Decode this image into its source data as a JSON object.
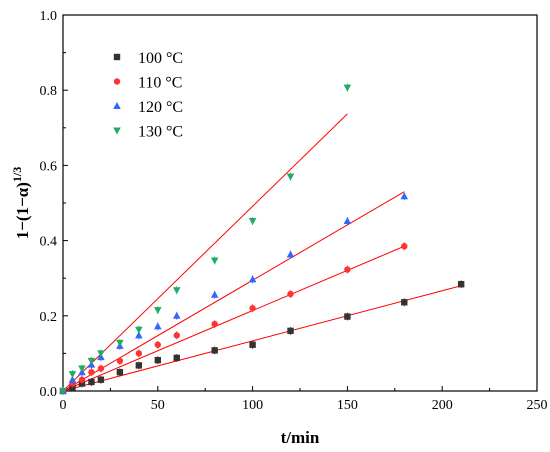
{
  "chart_data": {
    "type": "scatter",
    "xlabel": "t/min",
    "ylabel": {
      "base": "1−(1−α)",
      "exponent": "1/3"
    },
    "xlim": [
      0,
      250
    ],
    "ylim": [
      0.0,
      1.0
    ],
    "x_ticks": [
      "0",
      "50",
      "100",
      "150",
      "200",
      "250"
    ],
    "y_ticks": [
      "0.0",
      "0.2",
      "0.4",
      "0.6",
      "0.8",
      "1.0"
    ],
    "grid": false,
    "legend_position": "top-left",
    "fit_line_color": "#ff0000",
    "series": [
      {
        "name": "100 °C",
        "marker": "square",
        "color": "#333333",
        "x": [
          0,
          5,
          10,
          15,
          20,
          30,
          40,
          50,
          60,
          80,
          100,
          120,
          150,
          180,
          210
        ],
        "y": [
          0.0,
          0.01,
          0.02,
          0.024,
          0.03,
          0.05,
          0.068,
          0.082,
          0.088,
          0.108,
          0.123,
          0.16,
          0.198,
          0.236,
          0.284
        ],
        "fit": {
          "x": [
            0,
            210
          ],
          "y": [
            0.0,
            0.28
          ]
        }
      },
      {
        "name": "110 °C",
        "marker": "circle",
        "color": "#ff3333",
        "x": [
          0,
          5,
          10,
          15,
          20,
          30,
          40,
          50,
          60,
          80,
          100,
          120,
          150,
          180
        ],
        "y": [
          0.0,
          0.02,
          0.03,
          0.05,
          0.06,
          0.08,
          0.1,
          0.123,
          0.148,
          0.178,
          0.22,
          0.258,
          0.323,
          0.385
        ],
        "fit": {
          "x": [
            0,
            180
          ],
          "y": [
            0.0,
            0.385
          ]
        }
      },
      {
        "name": "120 °C",
        "marker": "triangle-up",
        "color": "#3366ff",
        "x": [
          0,
          5,
          10,
          15,
          20,
          30,
          40,
          50,
          60,
          80,
          100,
          120,
          150,
          180
        ],
        "y": [
          0.0,
          0.03,
          0.05,
          0.07,
          0.09,
          0.12,
          0.148,
          0.172,
          0.2,
          0.256,
          0.297,
          0.363,
          0.452,
          0.518
        ],
        "fit": {
          "x": [
            0,
            180
          ],
          "y": [
            0.0,
            0.53
          ]
        }
      },
      {
        "name": "130 °C",
        "marker": "triangle-down",
        "color": "#22aa66",
        "x": [
          0,
          5,
          10,
          15,
          20,
          30,
          40,
          50,
          60,
          80,
          100,
          120,
          150
        ],
        "y": [
          0.0,
          0.045,
          0.06,
          0.08,
          0.1,
          0.128,
          0.163,
          0.215,
          0.268,
          0.347,
          0.452,
          0.57,
          0.807
        ],
        "fit": {
          "x": [
            0,
            150
          ],
          "y": [
            0.0,
            0.737
          ]
        }
      }
    ]
  }
}
